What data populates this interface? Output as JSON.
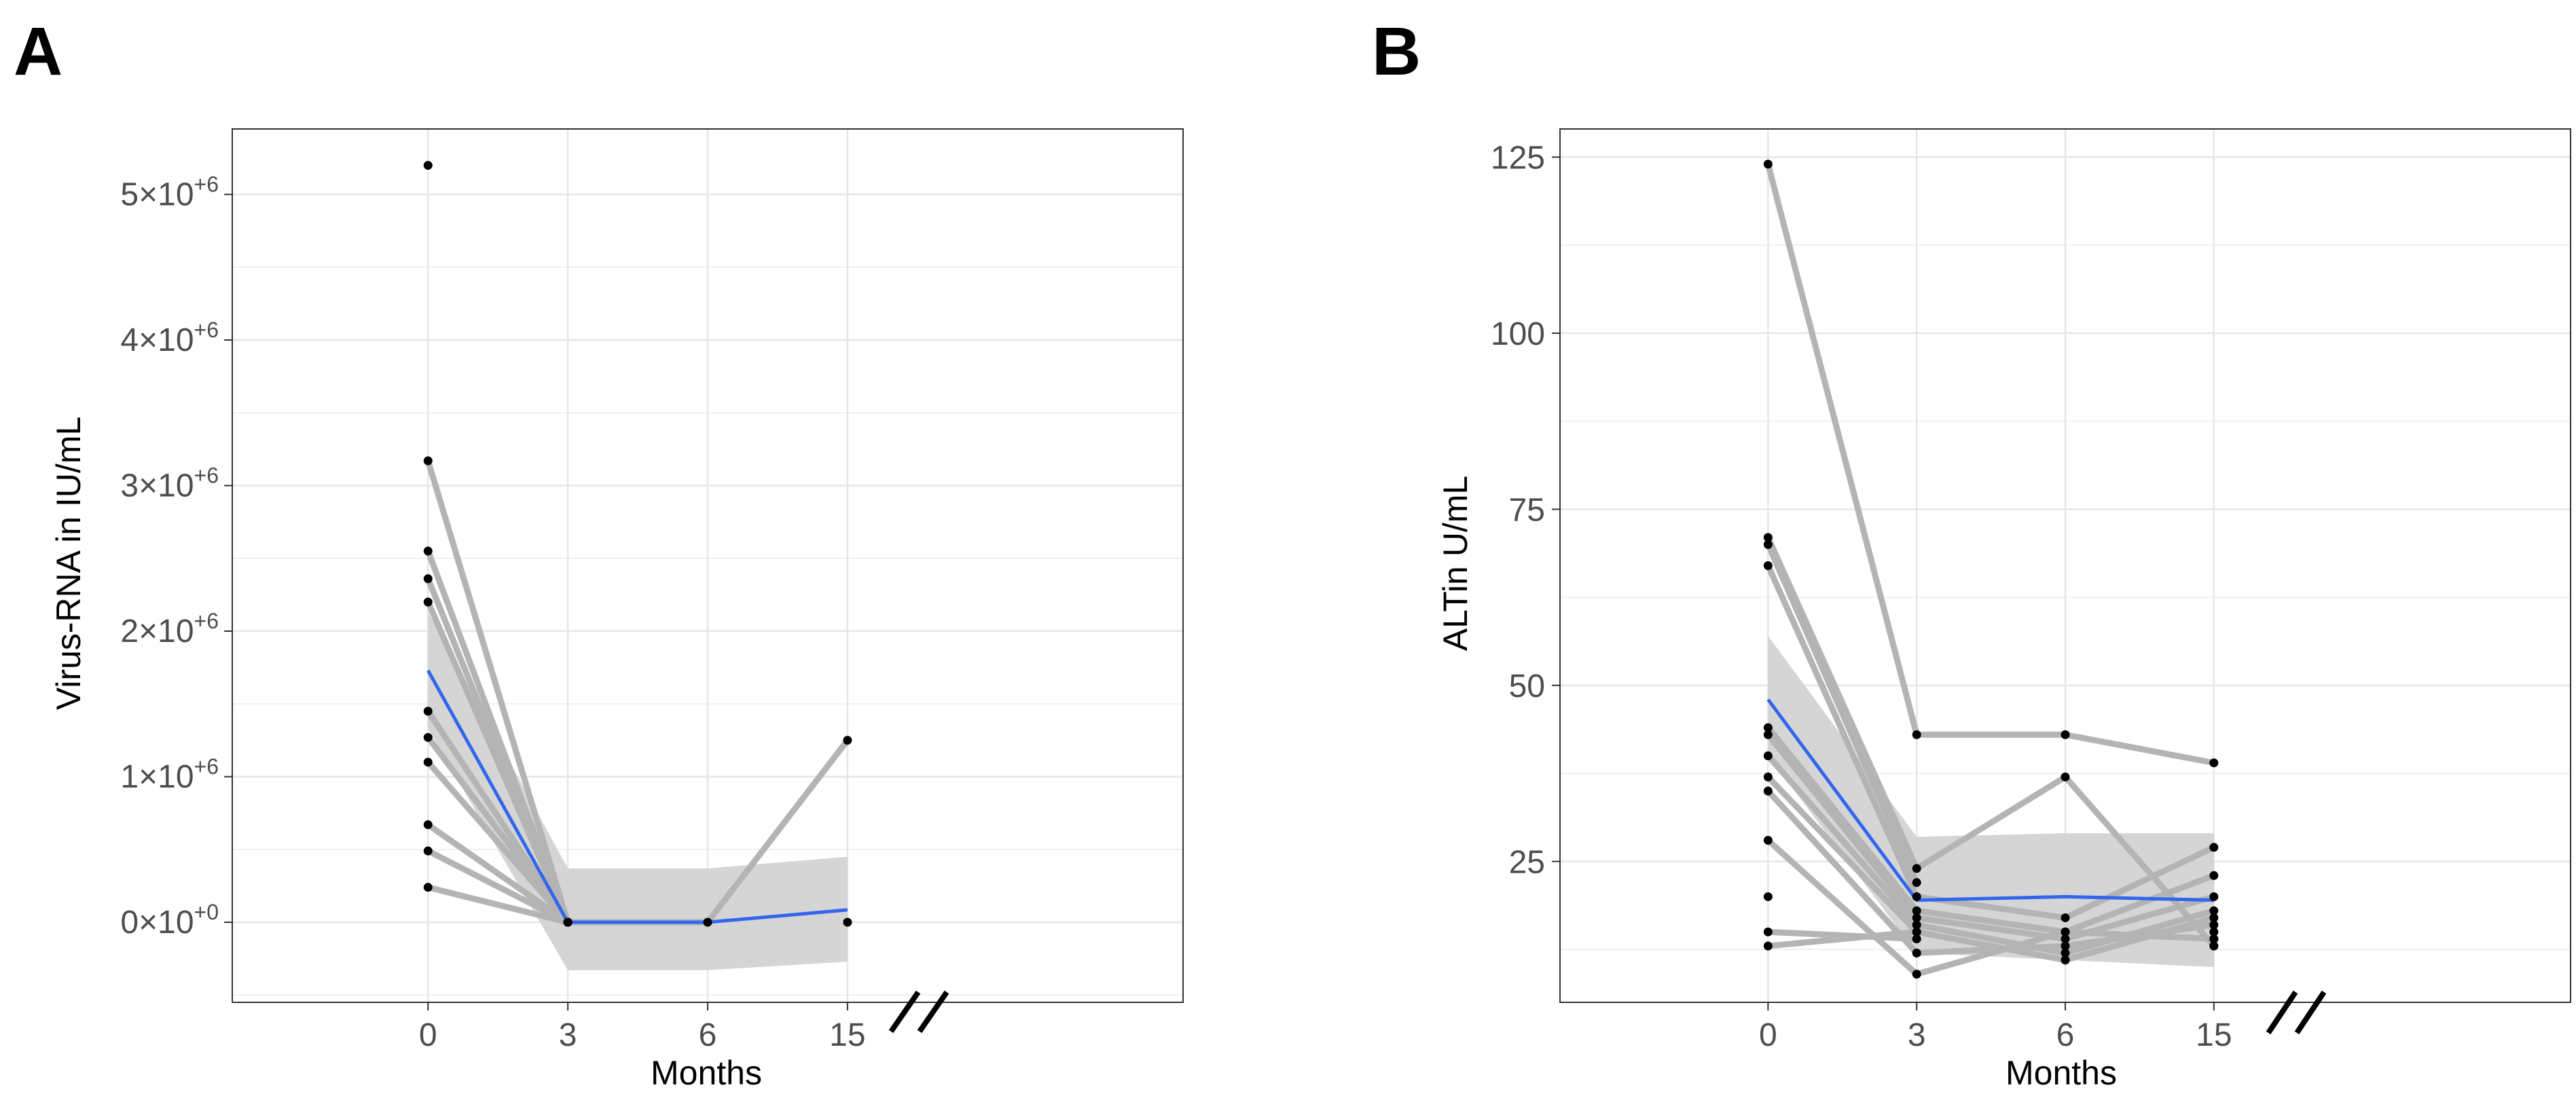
{
  "chart_data": [
    {
      "panel": "A",
      "type": "line",
      "xlabel": "Months",
      "ylabel": "Virus-RNA in IU/mL",
      "x": [
        0,
        3,
        6,
        15
      ],
      "x_tick_labels": [
        "0",
        "3",
        "6",
        "15"
      ],
      "axis_break": "between 6 and 15",
      "xlim": [
        -1.4,
        5.4
      ],
      "ylim": [
        -550000,
        5450000
      ],
      "y_ticks": [
        {
          "value": 0,
          "base": "0×10",
          "exp": "+0"
        },
        {
          "value": 1000000,
          "base": "1×10",
          "exp": "+6"
        },
        {
          "value": 2000000,
          "base": "2×10",
          "exp": "+6"
        },
        {
          "value": 3000000,
          "base": "3×10",
          "exp": "+6"
        },
        {
          "value": 4000000,
          "base": "4×10",
          "exp": "+6"
        },
        {
          "value": 5000000,
          "base": "5×10",
          "exp": "+6"
        }
      ],
      "grid": true,
      "individuals": [
        [
          3170000,
          0,
          null,
          null
        ],
        [
          2550000,
          0,
          null,
          null
        ],
        [
          2360000,
          0,
          null,
          null
        ],
        [
          2200000,
          0,
          null,
          null
        ],
        [
          1450000,
          0,
          0,
          1250000
        ],
        [
          1270000,
          0,
          null,
          0
        ],
        [
          1100000,
          0,
          null,
          null
        ],
        [
          670000,
          0,
          null,
          null
        ],
        [
          490000,
          0,
          null,
          null
        ],
        [
          240000,
          0,
          null,
          null
        ],
        [
          5200000,
          null,
          null,
          null
        ]
      ],
      "mean_trend": [
        1730000,
        0,
        0,
        85000
      ],
      "ci_lower": [
        1330000,
        -330000,
        -330000,
        -270000
      ],
      "ci_upper": [
        2130000,
        370000,
        370000,
        450000
      ],
      "colors": {
        "individual": "#b4b4b4",
        "mean": "#3366ee",
        "ci": "#d3d3d3",
        "point": "#000000"
      }
    },
    {
      "panel": "B",
      "type": "line",
      "xlabel": "Months",
      "ylabel": "ALTin U/mL",
      "x": [
        0,
        3,
        6,
        15
      ],
      "x_tick_labels": [
        "0",
        "3",
        "6",
        "15"
      ],
      "axis_break": "between 6 and 15",
      "xlim": [
        -1.4,
        5.4
      ],
      "ylim": [
        5,
        129
      ],
      "y_ticks": [
        {
          "value": 25,
          "label": "25"
        },
        {
          "value": 50,
          "label": "50"
        },
        {
          "value": 75,
          "label": "75"
        },
        {
          "value": 100,
          "label": "100"
        },
        {
          "value": 125,
          "label": "125"
        }
      ],
      "grid": true,
      "individuals": [
        [
          124,
          43,
          43,
          39
        ],
        [
          71,
          24,
          37,
          13
        ],
        [
          70,
          22,
          null,
          15
        ],
        [
          67,
          20,
          17,
          27
        ],
        [
          44,
          18,
          15,
          23
        ],
        [
          43,
          17,
          14,
          20
        ],
        [
          40,
          16,
          12,
          18
        ],
        [
          37,
          15,
          11,
          17
        ],
        [
          35,
          12,
          13,
          16
        ],
        [
          28,
          9,
          15,
          14
        ],
        [
          15,
          14,
          null,
          14
        ],
        [
          13,
          15,
          null,
          13
        ],
        [
          20,
          null,
          null,
          null
        ]
      ],
      "mean_trend": [
        48,
        19.5,
        20,
        19.5
      ],
      "ci_lower": [
        40,
        12,
        11,
        10
      ],
      "ci_upper": [
        57,
        28.5,
        29,
        29
      ],
      "colors": {
        "individual": "#b4b4b4",
        "mean": "#3366ee",
        "ci": "#d3d3d3",
        "point": "#000000"
      }
    }
  ]
}
